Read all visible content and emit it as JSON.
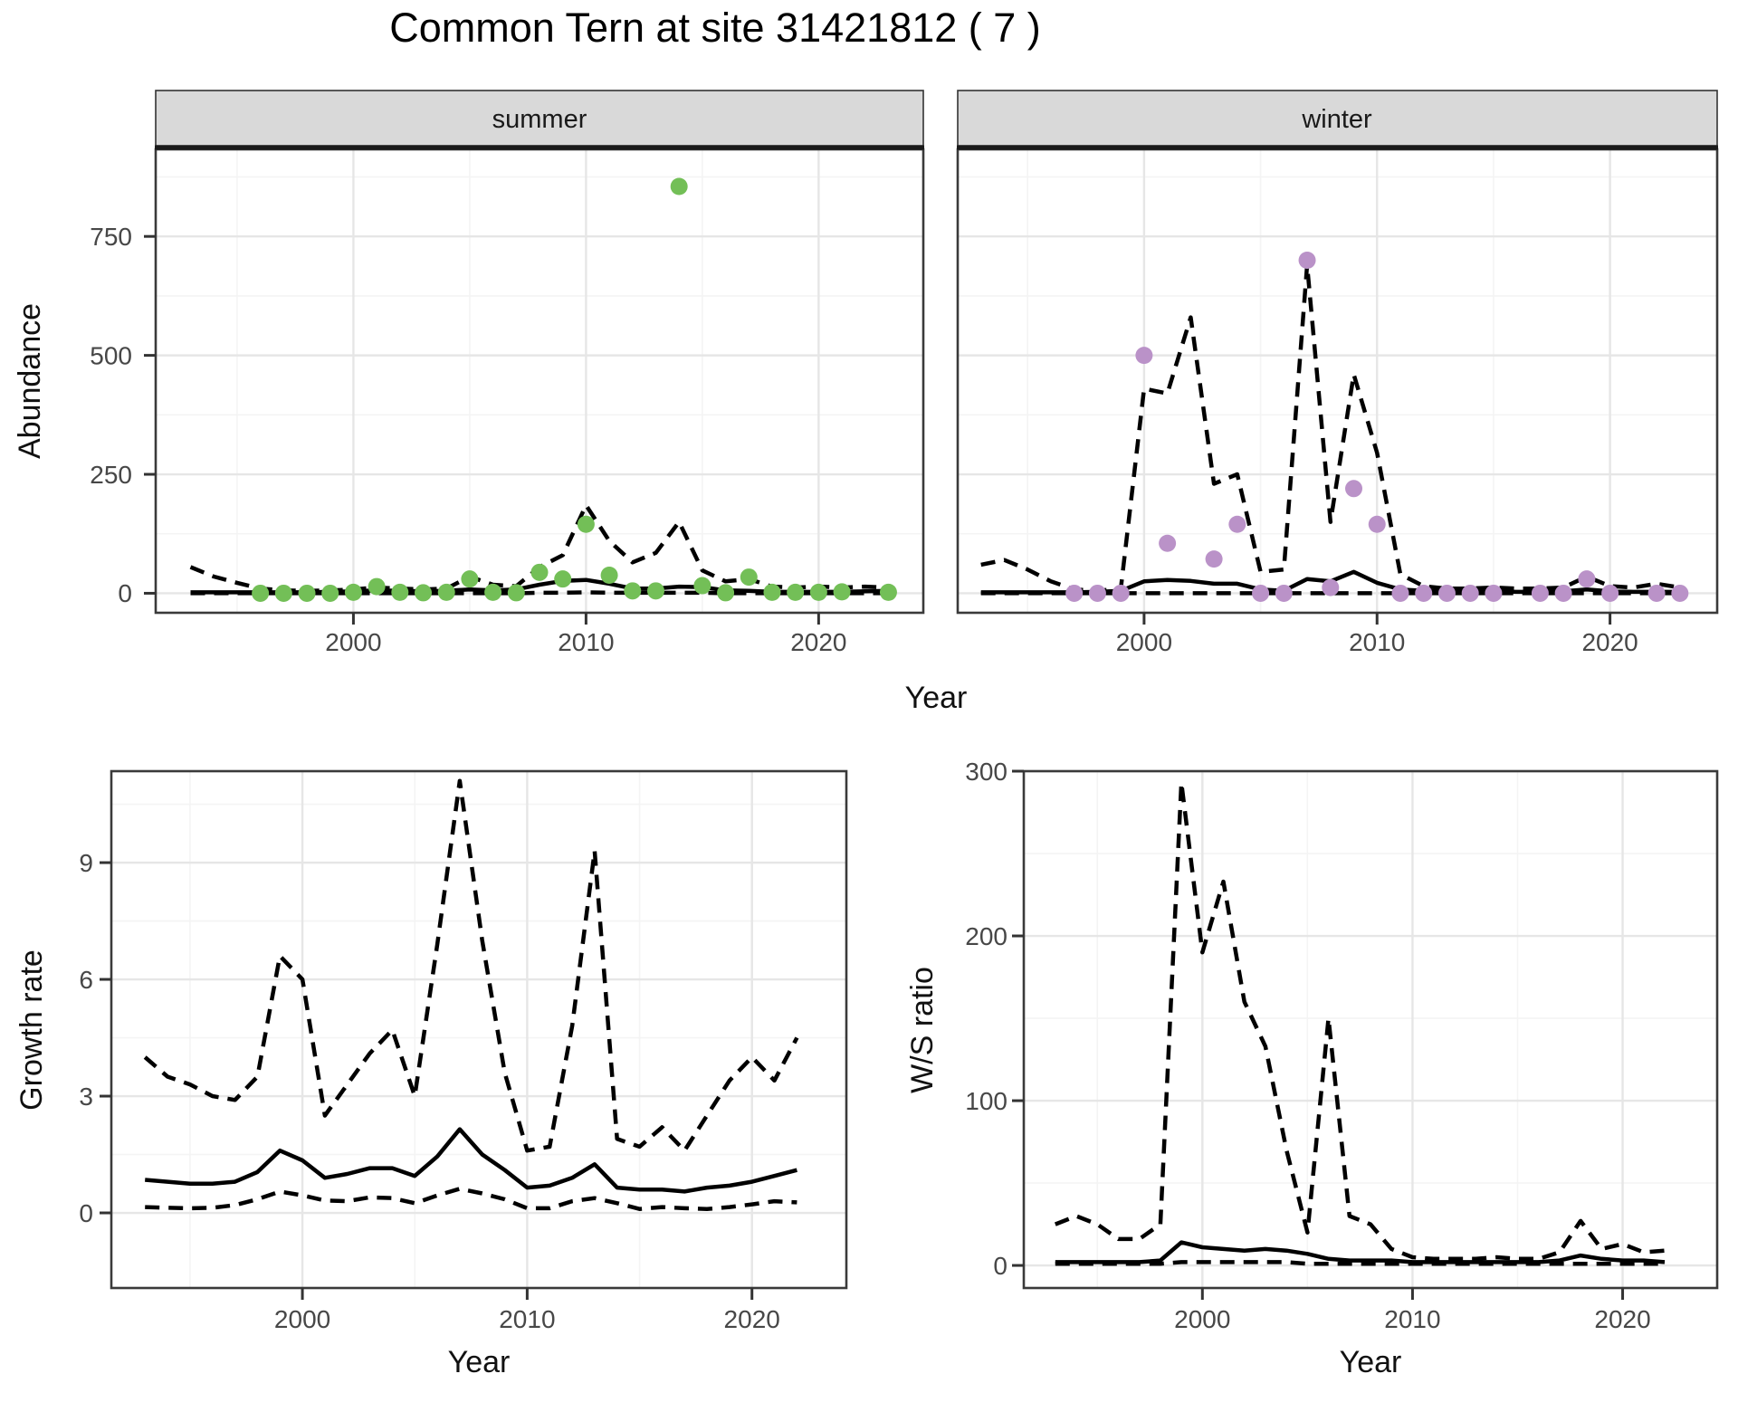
{
  "title": "Common Tern at site 31421812 ( 7 )",
  "axes": {
    "abundance_title": "Abundance",
    "top_x_title": "Year",
    "growth_title": "Growth rate",
    "growth_x_title": "Year",
    "ws_title": "W/S ratio",
    "ws_x_title": "Year"
  },
  "colors": {
    "summer_point": "#73BF57",
    "winter_point": "#BA92C8",
    "line": "#000000",
    "strip_bg": "#D9D9D9",
    "strip_border": "#333333",
    "panel_bg": "#FFFFFF",
    "panel_border": "#3A3A3A",
    "grid_major": "#E6E6E6",
    "grid_minor": "#F4F4F4",
    "tick_mark": "#333333"
  },
  "chart_data": [
    {
      "id": "abundance-summer",
      "type": "line",
      "facet": "summer",
      "xlabel": "Year",
      "ylabel": "Abundance",
      "xlim": [
        1991.5,
        2024.5
      ],
      "ylim": [
        -41,
        933
      ],
      "x_ticks": [
        2000,
        2010,
        2020
      ],
      "x_ticks_minor": [
        1995,
        2005,
        2015
      ],
      "y_ticks": [
        0,
        250,
        500,
        750
      ],
      "y_ticks_minor": [
        125,
        375,
        625,
        875
      ],
      "series": [
        {
          "name": "lower-ci",
          "style": "dashed",
          "x": [
            1993,
            1994,
            1995,
            1996,
            1997,
            1998,
            1999,
            2000,
            2001,
            2002,
            2003,
            2004,
            2005,
            2006,
            2007,
            2008,
            2009,
            2010,
            2011,
            2012,
            2013,
            2014,
            2015,
            2016,
            2017,
            2018,
            2019,
            2020,
            2021,
            2022,
            2023
          ],
          "y": [
            0,
            0,
            0,
            0,
            0,
            0,
            0,
            0,
            0,
            0,
            0,
            0,
            0,
            0,
            0,
            1,
            1,
            2,
            1,
            1,
            1,
            1,
            1,
            0,
            0,
            0,
            0,
            0,
            0,
            0,
            0
          ]
        },
        {
          "name": "upper-ci",
          "style": "dashed",
          "x": [
            1993,
            1994,
            1995,
            1996,
            1997,
            1998,
            1999,
            2000,
            2001,
            2002,
            2003,
            2004,
            2005,
            2006,
            2007,
            2008,
            2009,
            2010,
            2011,
            2012,
            2013,
            2014,
            2015,
            2016,
            2017,
            2018,
            2019,
            2020,
            2021,
            2022,
            2023
          ],
          "y": [
            55,
            35,
            22,
            10,
            6,
            5,
            6,
            8,
            12,
            10,
            8,
            10,
            35,
            18,
            15,
            55,
            80,
            185,
            110,
            65,
            85,
            150,
            48,
            25,
            30,
            14,
            12,
            14,
            12,
            14,
            12
          ]
        },
        {
          "name": "mean",
          "style": "solid",
          "x": [
            1993,
            1994,
            1995,
            1996,
            1997,
            1998,
            1999,
            2000,
            2001,
            2002,
            2003,
            2004,
            2005,
            2006,
            2007,
            2008,
            2009,
            2010,
            2011,
            2012,
            2013,
            2014,
            2015,
            2016,
            2017,
            2018,
            2019,
            2020,
            2021,
            2022,
            2023
          ],
          "y": [
            2,
            2,
            2,
            2,
            2,
            2,
            3,
            4,
            6,
            5,
            4,
            5,
            8,
            6,
            8,
            18,
            26,
            28,
            20,
            10,
            10,
            14,
            13,
            6,
            5,
            3,
            3,
            3,
            3,
            4,
            5
          ]
        },
        {
          "name": "observations",
          "style": "points",
          "color": "#73BF57",
          "x": [
            1996,
            1997,
            1998,
            1999,
            2000,
            2001,
            2002,
            2003,
            2004,
            2005,
            2006,
            2007,
            2008,
            2009,
            2010,
            2011,
            2012,
            2013,
            2014,
            2015,
            2016,
            2017,
            2018,
            2019,
            2020,
            2021,
            2023
          ],
          "y": [
            0,
            0,
            0,
            0,
            2,
            14,
            2,
            1,
            2,
            30,
            2,
            1,
            44,
            30,
            145,
            38,
            5,
            5,
            855,
            16,
            1,
            34,
            2,
            2,
            2,
            3,
            2
          ]
        }
      ]
    },
    {
      "id": "abundance-winter",
      "type": "line",
      "facet": "winter",
      "xlabel": "Year",
      "ylabel": "Abundance",
      "xlim": [
        1992,
        2024.6
      ],
      "ylim": [
        -41,
        933
      ],
      "x_ticks": [
        2000,
        2010,
        2020
      ],
      "x_ticks_minor": [
        1995,
        2005,
        2015
      ],
      "y_ticks": [
        0,
        250,
        500,
        750
      ],
      "y_ticks_minor": [
        125,
        375,
        625,
        875
      ],
      "series": [
        {
          "name": "lower-ci",
          "style": "dashed",
          "x": [
            1993,
            1994,
            1995,
            1996,
            1997,
            1998,
            1999,
            2000,
            2001,
            2002,
            2003,
            2004,
            2005,
            2006,
            2007,
            2008,
            2009,
            2010,
            2011,
            2012,
            2013,
            2014,
            2015,
            2016,
            2017,
            2018,
            2019,
            2020,
            2021,
            2022,
            2023
          ],
          "y": [
            0,
            0,
            0,
            0,
            0,
            0,
            0,
            0,
            0,
            0,
            0,
            0,
            0,
            0,
            0,
            0,
            0,
            0,
            0,
            0,
            0,
            0,
            0,
            0,
            0,
            0,
            0,
            0,
            0,
            0,
            0
          ]
        },
        {
          "name": "upper-ci",
          "style": "dashed",
          "x": [
            1993,
            1994,
            1995,
            1996,
            1997,
            1998,
            1999,
            2000,
            2001,
            2002,
            2003,
            2004,
            2005,
            2006,
            2007,
            2008,
            2009,
            2010,
            2011,
            2012,
            2013,
            2014,
            2015,
            2016,
            2017,
            2018,
            2019,
            2020,
            2021,
            2022,
            2023
          ],
          "y": [
            60,
            70,
            50,
            25,
            8,
            5,
            10,
            430,
            420,
            580,
            230,
            250,
            45,
            50,
            690,
            150,
            460,
            295,
            40,
            15,
            10,
            10,
            12,
            10,
            10,
            12,
            35,
            15,
            12,
            20,
            12
          ]
        },
        {
          "name": "mean",
          "style": "solid",
          "x": [
            1993,
            1994,
            1995,
            1996,
            1997,
            1998,
            1999,
            2000,
            2001,
            2002,
            2003,
            2004,
            2005,
            2006,
            2007,
            2008,
            2009,
            2010,
            2011,
            2012,
            2013,
            2014,
            2015,
            2016,
            2017,
            2018,
            2019,
            2020,
            2021,
            2022,
            2023
          ],
          "y": [
            2,
            2,
            2,
            2,
            2,
            3,
            5,
            25,
            28,
            26,
            20,
            20,
            8,
            5,
            30,
            25,
            45,
            22,
            8,
            5,
            4,
            4,
            4,
            3,
            3,
            4,
            8,
            4,
            3,
            3,
            3
          ]
        },
        {
          "name": "observations",
          "style": "points",
          "color": "#BA92C8",
          "x": [
            1997,
            1998,
            1999,
            2000,
            2001,
            2003,
            2004,
            2005,
            2006,
            2007,
            2008,
            2009,
            2010,
            2011,
            2012,
            2013,
            2014,
            2015,
            2017,
            2018,
            2019,
            2020,
            2022,
            2023
          ],
          "y": [
            0,
            0,
            0,
            500,
            105,
            72,
            145,
            0,
            0,
            700,
            12,
            220,
            145,
            0,
            0,
            0,
            0,
            0,
            0,
            0,
            30,
            0,
            0,
            0
          ]
        }
      ]
    },
    {
      "id": "growth-rate",
      "type": "line",
      "facet": null,
      "xlabel": "Year",
      "ylabel": "Growth rate",
      "xlim": [
        1991.5,
        2024.2
      ],
      "ylim": [
        -1.93,
        11.35
      ],
      "x_ticks": [
        2000,
        2010,
        2020
      ],
      "x_ticks_minor": [
        1995,
        2005,
        2015
      ],
      "y_ticks": [
        0,
        3,
        6,
        9
      ],
      "y_ticks_minor": [
        1.5,
        4.5,
        7.5,
        10.5
      ],
      "series": [
        {
          "name": "lower-ci",
          "style": "dashed",
          "x": [
            1993,
            1994,
            1995,
            1996,
            1997,
            1998,
            1999,
            2000,
            2001,
            2002,
            2003,
            2004,
            2005,
            2006,
            2007,
            2008,
            2009,
            2010,
            2011,
            2012,
            2013,
            2014,
            2015,
            2016,
            2017,
            2018,
            2019,
            2020,
            2021,
            2022
          ],
          "y": [
            0.15,
            0.13,
            0.12,
            0.13,
            0.2,
            0.35,
            0.55,
            0.45,
            0.32,
            0.3,
            0.4,
            0.38,
            0.25,
            0.45,
            0.62,
            0.5,
            0.35,
            0.12,
            0.12,
            0.3,
            0.38,
            0.25,
            0.1,
            0.15,
            0.12,
            0.1,
            0.15,
            0.22,
            0.3,
            0.27
          ]
        },
        {
          "name": "upper-ci",
          "style": "dashed",
          "x": [
            1993,
            1994,
            1995,
            1996,
            1997,
            1998,
            1999,
            2000,
            2001,
            2002,
            2003,
            2004,
            2005,
            2006,
            2007,
            2008,
            2009,
            2010,
            2011,
            2012,
            2013,
            2014,
            2015,
            2016,
            2017,
            2018,
            2019,
            2020,
            2021,
            2022
          ],
          "y": [
            4.0,
            3.5,
            3.3,
            3.0,
            2.9,
            3.5,
            6.6,
            6.0,
            2.5,
            3.3,
            4.1,
            4.7,
            3.0,
            6.9,
            11.1,
            7.0,
            3.6,
            1.6,
            1.7,
            4.8,
            9.3,
            1.9,
            1.7,
            2.2,
            1.6,
            2.5,
            3.4,
            4.0,
            3.4,
            4.5
          ]
        },
        {
          "name": "mean",
          "style": "solid",
          "x": [
            1993,
            1994,
            1995,
            1996,
            1997,
            1998,
            1999,
            2000,
            2001,
            2002,
            2003,
            2004,
            2005,
            2006,
            2007,
            2008,
            2009,
            2010,
            2011,
            2012,
            2013,
            2014,
            2015,
            2016,
            2017,
            2018,
            2019,
            2020,
            2021,
            2022
          ],
          "y": [
            0.85,
            0.8,
            0.75,
            0.75,
            0.8,
            1.05,
            1.6,
            1.35,
            0.9,
            1.0,
            1.15,
            1.15,
            0.95,
            1.45,
            2.15,
            1.5,
            1.1,
            0.65,
            0.7,
            0.9,
            1.25,
            0.65,
            0.6,
            0.6,
            0.55,
            0.65,
            0.7,
            0.8,
            0.95,
            1.1
          ]
        }
      ]
    },
    {
      "id": "ws-ratio",
      "type": "line",
      "facet": null,
      "xlabel": "Year",
      "ylabel": "W/S ratio",
      "xlim": [
        1991.5,
        2024.5
      ],
      "ylim": [
        -13.7,
        300
      ],
      "x_ticks": [
        2000,
        2010,
        2020
      ],
      "x_ticks_minor": [
        1995,
        2005,
        2015
      ],
      "y_ticks": [
        0,
        100,
        200,
        300
      ],
      "y_ticks_minor": [
        50,
        150,
        250
      ],
      "series": [
        {
          "name": "lower-ci",
          "style": "dashed",
          "x": [
            1993,
            1994,
            1995,
            1996,
            1997,
            1998,
            1999,
            2000,
            2001,
            2002,
            2003,
            2004,
            2005,
            2006,
            2007,
            2008,
            2009,
            2010,
            2011,
            2012,
            2013,
            2014,
            2015,
            2016,
            2017,
            2018,
            2019,
            2020,
            2021,
            2022
          ],
          "y": [
            1,
            1,
            1,
            1,
            1,
            1,
            2,
            2,
            2,
            2,
            2,
            2,
            1,
            1,
            1,
            1,
            1,
            1,
            1,
            1,
            1,
            1,
            1,
            1,
            1,
            1,
            1,
            1,
            1,
            1
          ]
        },
        {
          "name": "upper-ci",
          "style": "dashed",
          "x": [
            1993,
            1994,
            1995,
            1996,
            1997,
            1998,
            1999,
            2000,
            2001,
            2002,
            2003,
            2004,
            2005,
            2006,
            2007,
            2008,
            2009,
            2010,
            2011,
            2012,
            2013,
            2014,
            2015,
            2016,
            2017,
            2018,
            2019,
            2020,
            2021,
            2022
          ],
          "y": [
            25,
            30,
            25,
            16,
            16,
            25,
            293,
            190,
            233,
            160,
            133,
            70,
            20,
            150,
            30,
            25,
            10,
            5,
            4,
            4,
            4,
            5,
            4,
            4,
            8,
            27,
            10,
            13,
            8,
            9
          ]
        },
        {
          "name": "mean",
          "style": "solid",
          "x": [
            1993,
            1994,
            1995,
            1996,
            1997,
            1998,
            1999,
            2000,
            2001,
            2002,
            2003,
            2004,
            2005,
            2006,
            2007,
            2008,
            2009,
            2010,
            2011,
            2012,
            2013,
            2014,
            2015,
            2016,
            2017,
            2018,
            2019,
            2020,
            2021,
            2022
          ],
          "y": [
            2,
            2,
            2,
            2,
            2,
            3,
            14,
            11,
            10,
            9,
            10,
            9,
            7,
            4,
            3,
            3,
            3,
            2,
            2,
            2,
            2,
            2,
            2,
            2,
            3,
            6,
            4,
            3,
            3,
            2
          ]
        }
      ]
    }
  ]
}
